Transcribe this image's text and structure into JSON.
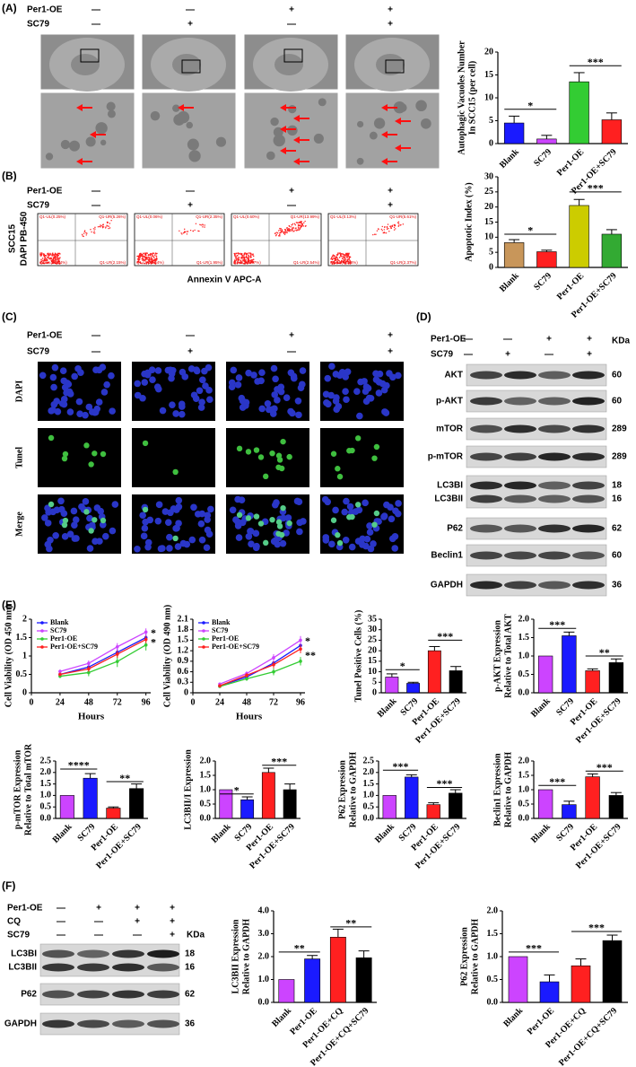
{
  "panels": {
    "A": {
      "label": "(A)",
      "rows": [
        {
          "name": "Per1-OE",
          "signs": [
            "—",
            "—",
            "+",
            "+"
          ]
        },
        {
          "name": "SC79",
          "signs": [
            "—",
            "+",
            "—",
            "+"
          ]
        }
      ]
    },
    "B": {
      "label": "(B)",
      "rows": [
        {
          "name": "Per1-OE",
          "signs": [
            "—",
            "—",
            "+",
            "+"
          ]
        },
        {
          "name": "SC79",
          "signs": [
            "—",
            "+",
            "—",
            "+"
          ]
        }
      ],
      "ylabel": [
        "SCC15",
        "DAPI PB-450"
      ],
      "xlabel": "Annexin V APC-A",
      "quadrants": [
        [
          "Q1-UL(0.25%)",
          "Q1-UR(5.26%)",
          "Q1-LL(92.34%)",
          "Q1-LR(2.15%)"
        ],
        [
          "Q1-UL(0.06%)",
          "Q1-UR(2.35%)",
          "Q1-LL(95.64%)",
          "Q1-LR(1.95%)"
        ],
        [
          "Q1-UL(0.60%)",
          "Q1-UR(13.99%)",
          "Q1-LL(82.87%)",
          "Q1-LR(2.54%)"
        ],
        [
          "Q1-UL(0.13%)",
          "Q1-UR(5.61%)",
          "Q1-LL(91.88%)",
          "Q1-LR(2.37%)"
        ]
      ]
    },
    "C": {
      "label": "(C)",
      "rows": [
        {
          "name": "Per1-OE",
          "signs": [
            "—",
            "—",
            "+",
            "+"
          ]
        },
        {
          "name": "SC79",
          "signs": [
            "—",
            "+",
            "—",
            "+"
          ]
        }
      ],
      "channels": [
        "DAPI",
        "Tunel",
        "Merge"
      ]
    },
    "D": {
      "label": "(D)",
      "rows": [
        {
          "name": "Per1-OE",
          "signs": [
            "—",
            "—",
            "+",
            "+"
          ]
        },
        {
          "name": "SC79",
          "signs": [
            "—",
            "+",
            "—",
            "+"
          ]
        }
      ],
      "unit": "KDa",
      "bands": [
        {
          "name": "AKT",
          "kda": 60
        },
        {
          "name": "p-AKT",
          "kda": 60
        },
        {
          "name": "mTOR",
          "kda": 289
        },
        {
          "name": "p-mTOR",
          "kda": 289
        },
        {
          "name": "LC3BI",
          "kda": 18
        },
        {
          "name": "LC3BII",
          "kda": 16
        },
        {
          "name": "P62",
          "kda": 62
        },
        {
          "name": "Beclin1",
          "kda": 60
        },
        {
          "name": "GAPDH",
          "kda": 36
        }
      ]
    },
    "E": {
      "label": "(E)"
    },
    "F": {
      "label": "(F)",
      "rows": [
        {
          "name": "Per1-OE",
          "signs": [
            "—",
            "+",
            "+",
            "+"
          ]
        },
        {
          "name": "CQ",
          "signs": [
            "—",
            "—",
            "+",
            "+"
          ]
        },
        {
          "name": "SC79",
          "signs": [
            "—",
            "—",
            "—",
            "+"
          ]
        }
      ],
      "unit": "KDa",
      "bands": [
        {
          "name": "LC3BI",
          "kda": 18
        },
        {
          "name": "LC3BII",
          "kda": 16
        },
        {
          "name": "P62",
          "kda": 62
        },
        {
          "name": "GAPDH",
          "kda": 36
        }
      ]
    }
  },
  "chart_data": [
    {
      "type": "bar",
      "ylabel": [
        "Autophagic Vacuoles Number",
        "In SCC15 (per cell)"
      ],
      "categories": [
        "Blank",
        "SC79",
        "Per1-OE",
        "Per1-OE+SC79"
      ],
      "values": [
        4.5,
        1.0,
        13.5,
        5.2
      ],
      "errors": [
        1.5,
        0.8,
        2.0,
        1.5
      ],
      "colors": [
        "#1a1aff",
        "#cc44ff",
        "#33cc33",
        "#ff2020"
      ],
      "ylim": [
        0,
        20
      ],
      "yticks": [
        0,
        5,
        10,
        15,
        20
      ],
      "annotations": [
        {
          "label": "*",
          "x": [
            0,
            1
          ],
          "y": 7.5
        },
        {
          "label": "***",
          "x": [
            2,
            3
          ],
          "y": 17
        }
      ]
    },
    {
      "type": "bar",
      "ylabel": "Apoptotic Index (%)",
      "categories": [
        "Blank",
        "SC79",
        "Per1-OE",
        "Per1-OE+SC79"
      ],
      "values": [
        8.2,
        5.2,
        20.5,
        11
      ],
      "errors": [
        1,
        0.5,
        2,
        1.5
      ],
      "colors": [
        "#c8965a",
        "#ff2020",
        "#cccc00",
        "#33aa33"
      ],
      "ylim": [
        0,
        30
      ],
      "yticks": [
        0,
        5,
        10,
        15,
        20,
        25,
        30
      ],
      "annotations": [
        {
          "label": "*",
          "x": [
            0,
            1
          ],
          "y": 11
        },
        {
          "label": "***",
          "x": [
            2,
            3
          ],
          "y": 25
        }
      ]
    },
    {
      "type": "line",
      "ylabel": "Cell Viability (OD 450 nm)",
      "xlabel": "Hours",
      "x": [
        24,
        48,
        72,
        96
      ],
      "xlim": [
        0,
        100
      ],
      "xticks": [
        0,
        24,
        48,
        72,
        96
      ],
      "ylim": [
        0,
        2
      ],
      "yticks": [
        0,
        0.5,
        1,
        1.5,
        2
      ],
      "legend": "upper left",
      "series": [
        {
          "name": "Blank",
          "color": "#1a1aff",
          "values": [
            0.5,
            0.7,
            1.1,
            1.5
          ],
          "errors": [
            0.05,
            0.08,
            0.1,
            0.1
          ]
        },
        {
          "name": "SC79",
          "color": "#cc44ff",
          "values": [
            0.58,
            0.8,
            1.25,
            1.65
          ],
          "errors": [
            0.05,
            0.08,
            0.1,
            0.1
          ]
        },
        {
          "name": "Per1-OE",
          "color": "#33cc33",
          "values": [
            0.45,
            0.55,
            0.85,
            1.3
          ],
          "errors": [
            0.05,
            0.1,
            0.15,
            0.15
          ]
        },
        {
          "name": "Per1-OE+SC79",
          "color": "#ff2020",
          "values": [
            0.5,
            0.65,
            1.05,
            1.45
          ],
          "errors": [
            0.05,
            0.08,
            0.1,
            0.1
          ]
        }
      ],
      "annotations": [
        {
          "label": "*",
          "x": 100,
          "y": 1.6
        },
        {
          "label": "*",
          "x": 100,
          "y": 1.35
        }
      ]
    },
    {
      "type": "line",
      "ylabel": "Cell Viability (OD 490 nm)",
      "xlabel": "Hours",
      "x": [
        24,
        48,
        72,
        96
      ],
      "xlim": [
        0,
        100
      ],
      "xticks": [
        0,
        24,
        48,
        72,
        96
      ],
      "ylim": [
        0,
        2.1
      ],
      "yticks": [
        0,
        0.3,
        0.6,
        0.9,
        1.2,
        1.5,
        1.8,
        2.1
      ],
      "legend": "upper left",
      "series": [
        {
          "name": "Blank",
          "color": "#1a1aff",
          "values": [
            0.2,
            0.45,
            0.85,
            1.35
          ],
          "errors": [
            0.03,
            0.06,
            0.1,
            0.12
          ]
        },
        {
          "name": "SC79",
          "color": "#cc44ff",
          "values": [
            0.25,
            0.55,
            1.0,
            1.5
          ],
          "errors": [
            0.03,
            0.06,
            0.1,
            0.12
          ]
        },
        {
          "name": "Per1-OE",
          "color": "#33cc33",
          "values": [
            0.18,
            0.4,
            0.6,
            0.9
          ],
          "errors": [
            0.03,
            0.06,
            0.1,
            0.12
          ]
        },
        {
          "name": "Per1-OE+SC79",
          "color": "#ff2020",
          "values": [
            0.2,
            0.5,
            0.8,
            1.25
          ],
          "errors": [
            0.03,
            0.06,
            0.1,
            0.12
          ]
        }
      ],
      "annotations": [
        {
          "label": "*",
          "x": 100,
          "y": 1.45
        },
        {
          "label": "**",
          "x": 100,
          "y": 1.05
        }
      ]
    },
    {
      "type": "bar",
      "ylabel": "Tunel Positive Cells (%)",
      "categories": [
        "Blank",
        "SC79",
        "Per1-OE",
        "Per1-OE+SC79"
      ],
      "values": [
        7.5,
        4.5,
        20,
        10.5
      ],
      "errors": [
        1.5,
        0.5,
        2,
        2
      ],
      "colors": [
        "#cc44ff",
        "#1a1aff",
        "#ff2020",
        "#000000"
      ],
      "ylim": [
        0,
        35
      ],
      "yticks": [
        0,
        5,
        10,
        15,
        20,
        25,
        30,
        35
      ],
      "annotations": [
        {
          "label": "*",
          "x": [
            0,
            1
          ],
          "y": 11
        },
        {
          "label": "***",
          "x": [
            2,
            3
          ],
          "y": 25
        }
      ]
    },
    {
      "type": "bar",
      "ylabel": [
        "p-AKT Expression",
        "Relative to Total AKT"
      ],
      "categories": [
        "Blank",
        "SC79",
        "Per1-OE",
        "Per1-OE+SC79"
      ],
      "values": [
        1.0,
        1.55,
        0.6,
        0.82
      ],
      "errors": [
        0,
        0.1,
        0.05,
        0.1
      ],
      "colors": [
        "#cc44ff",
        "#1a1aff",
        "#ff2020",
        "#000000"
      ],
      "ylim": [
        0,
        2
      ],
      "yticks": [
        {
          "value": 0,
          "label": "0.0"
        },
        0.5,
        {
          "value": 1,
          "label": "1.0"
        },
        1.5,
        {
          "value": 2,
          "label": "2.0"
        }
      ],
      "annotations": [
        {
          "label": "***",
          "x": [
            0,
            1
          ],
          "y": 1.75
        },
        {
          "label": "**",
          "x": [
            2,
            3
          ],
          "y": 1.0
        }
      ]
    },
    {
      "type": "bar",
      "ylabel": [
        "p-mTOR Expression",
        "Relative to Total mTOR"
      ],
      "categories": [
        "Blank",
        "SC79",
        "Per1-OE",
        "Per1-OE+SC79"
      ],
      "values": [
        1.0,
        1.75,
        0.45,
        1.3
      ],
      "errors": [
        0,
        0.2,
        0.05,
        0.2
      ],
      "colors": [
        "#cc44ff",
        "#1a1aff",
        "#ff2020",
        "#000000"
      ],
      "ylim": [
        0,
        2.5
      ],
      "yticks": [
        {
          "value": 0,
          "label": "0.0"
        },
        0.5,
        {
          "value": 1,
          "label": "1.0"
        },
        1.5,
        {
          "value": 2,
          "label": "2.0"
        },
        2.5
      ],
      "annotations": [
        {
          "label": "****",
          "x": [
            0,
            1
          ],
          "y": 2.15
        },
        {
          "label": "**",
          "x": [
            2,
            3
          ],
          "y": 1.6
        }
      ]
    },
    {
      "type": "bar",
      "ylabel": "LC3BII/I Expression",
      "categories": [
        "Blank",
        "SC79",
        "Per1-OE",
        "Per1-OE+SC79"
      ],
      "values": [
        1.0,
        0.65,
        1.6,
        1.0
      ],
      "errors": [
        0,
        0.1,
        0.15,
        0.2
      ],
      "colors": [
        "#cc44ff",
        "#1a1aff",
        "#ff2020",
        "#000000"
      ],
      "ylim": [
        0,
        2
      ],
      "yticks": [
        {
          "value": 0,
          "label": "0.0"
        },
        0.5,
        {
          "value": 1,
          "label": "1.0"
        },
        1.5,
        {
          "value": 2,
          "label": "2.0"
        }
      ],
      "annotations": [
        {
          "label": "*",
          "x": [
            0,
            1
          ],
          "y": 0.85
        },
        {
          "label": "***",
          "x": [
            2,
            3
          ],
          "y": 1.85
        }
      ]
    },
    {
      "type": "bar",
      "ylabel": [
        "P62 Expression",
        "Relative to GAPDH"
      ],
      "categories": [
        "Blank",
        "SC79",
        "Per1-OE",
        "Per1-OE+SC79"
      ],
      "values": [
        1.0,
        1.8,
        0.6,
        1.1
      ],
      "errors": [
        0,
        0.1,
        0.08,
        0.15
      ],
      "colors": [
        "#cc44ff",
        "#1a1aff",
        "#ff2020",
        "#000000"
      ],
      "ylim": [
        0,
        2.5
      ],
      "yticks": [
        {
          "value": 0,
          "label": "0.0"
        },
        0.5,
        {
          "value": 1,
          "label": "1.0"
        },
        1.5,
        {
          "value": 2,
          "label": "2.0"
        },
        2.5
      ],
      "annotations": [
        {
          "label": "***",
          "x": [
            0,
            1
          ],
          "y": 2.1
        },
        {
          "label": "***",
          "x": [
            2,
            3
          ],
          "y": 1.35
        }
      ]
    },
    {
      "type": "bar",
      "ylabel": [
        "Beclin1 Expression",
        "Relative to GAPDH"
      ],
      "categories": [
        "Blank",
        "SC79",
        "Per1-OE",
        "Per1-OE+SC79"
      ],
      "values": [
        1.0,
        0.48,
        1.45,
        0.8
      ],
      "errors": [
        0,
        0.12,
        0.1,
        0.1
      ],
      "colors": [
        "#cc44ff",
        "#1a1aff",
        "#ff2020",
        "#000000"
      ],
      "ylim": [
        0,
        2
      ],
      "yticks": [
        {
          "value": 0,
          "label": "0.0"
        },
        0.5,
        {
          "value": 1,
          "label": "1.0"
        },
        1.5,
        {
          "value": 2,
          "label": "2.0"
        }
      ],
      "annotations": [
        {
          "label": "***",
          "x": [
            0,
            1
          ],
          "y": 1.15
        },
        {
          "label": "***",
          "x": [
            2,
            3
          ],
          "y": 1.65
        }
      ]
    },
    {
      "type": "bar",
      "ylabel": [
        "LC3BII Expression",
        "Relative to GAPDH"
      ],
      "categories": [
        "Blank",
        "Per1-OE",
        "Per1-OE+CQ",
        "Per1-OE+CQ+SC79"
      ],
      "values": [
        1.0,
        1.9,
        2.85,
        1.95
      ],
      "errors": [
        0,
        0.15,
        0.35,
        0.3
      ],
      "colors": [
        "#cc44ff",
        "#1a1aff",
        "#ff2020",
        "#000000"
      ],
      "ylim": [
        0,
        4
      ],
      "yticks": [
        {
          "value": 0,
          "label": "0.0"
        },
        {
          "value": 1,
          "label": "1.0"
        },
        {
          "value": 2,
          "label": "2.0"
        },
        {
          "value": 3,
          "label": "3.0"
        },
        {
          "value": 4,
          "label": "4.0"
        }
      ],
      "annotations": [
        {
          "label": "**",
          "x": [
            0,
            1
          ],
          "y": 2.2
        },
        {
          "label": "**",
          "x": [
            2,
            3
          ],
          "y": 3.3
        }
      ]
    },
    {
      "type": "bar",
      "ylabel": [
        "P62 Expression",
        "Relative to GAPDH"
      ],
      "categories": [
        "Blank",
        "Per1-OE",
        "Per1-OE+CQ",
        "Per1-OE+CQ+SC79"
      ],
      "values": [
        1.0,
        0.45,
        0.8,
        1.35
      ],
      "errors": [
        0,
        0.15,
        0.15,
        0.12
      ],
      "colors": [
        "#cc44ff",
        "#1a1aff",
        "#ff2020",
        "#000000"
      ],
      "ylim": [
        0,
        2
      ],
      "yticks": [
        {
          "value": 0,
          "label": "0.0"
        },
        0.5,
        {
          "value": 1,
          "label": "1.0"
        },
        1.5,
        {
          "value": 2,
          "label": "2.0"
        }
      ],
      "annotations": [
        {
          "label": "***",
          "x": [
            0,
            1
          ],
          "y": 1.1
        },
        {
          "label": "***",
          "x": [
            2,
            3
          ],
          "y": 1.55
        }
      ]
    }
  ]
}
